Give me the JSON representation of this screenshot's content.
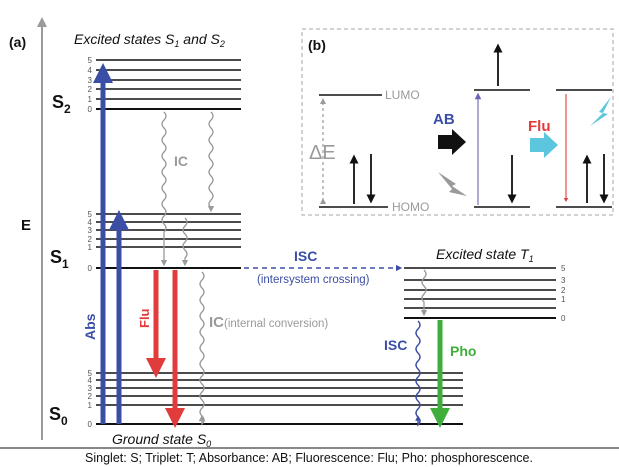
{
  "panel_a": {
    "label": "(a)",
    "axis_label": "E",
    "excited_title": "Excited states S",
    "s1_sub": "1",
    "excited_title_and": " and S",
    "s2_sub": "2",
    "ground_title": "Ground state S",
    "s0_sub": "0",
    "triplet_title": "Excited state T",
    "t1_sub": "1",
    "states": [
      {
        "name": "S",
        "sub": "2"
      },
      {
        "name": "S",
        "sub": "1"
      },
      {
        "name": "S",
        "sub": "0"
      }
    ],
    "vib": [
      "0",
      "1",
      "2",
      "3",
      "4",
      "5"
    ],
    "labels": {
      "abs": "Abs",
      "flu": "Flu",
      "ic": "IC",
      "ic_long": "(internal conversion)",
      "isc": "ISC",
      "isc_long": "(intersystem crossing)",
      "pho": "Pho"
    }
  },
  "panel_b": {
    "label": "(b)",
    "lumo": "LUMO",
    "homo": "HOMO",
    "delta_e": "ΔE",
    "ab": "AB",
    "flu": "Flu"
  },
  "caption": "Singlet: S; Triplet: T; Absorbance: AB; Fluorescence: Flu; Pho: phosphorescence.",
  "colors": {
    "absorption": "#3a4ea6",
    "fluorescence": "#e23b3b",
    "phosphorescence": "#3fae3a",
    "relaxation": "#9a9a9a",
    "emission_accent": "#5bc6de"
  }
}
